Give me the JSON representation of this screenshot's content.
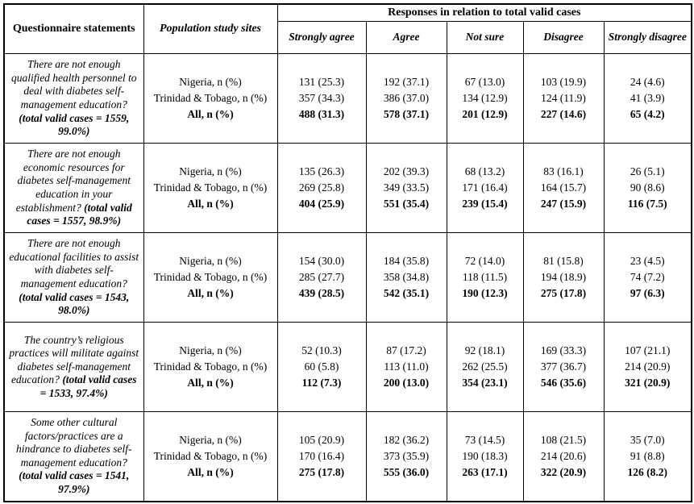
{
  "table": {
    "header": {
      "questionnaire": "Questionnaire statements",
      "population": "Population study sites",
      "responses": "Responses in relation to total valid cases",
      "response_columns": [
        "Strongly agree",
        "Agree",
        "Not sure",
        "Disagree",
        "Strongly disagree"
      ]
    },
    "site_labels": [
      "Nigeria, n (%)",
      "Trinidad & Tobago, n (%)",
      "All, n (%)"
    ],
    "rows": [
      {
        "statement": "There are not enough qualified health personnel to deal with diabetes self-management education?",
        "valid_cases": "(total valid cases = 1559, 99.0%)",
        "cells": [
          [
            "131 (25.3)",
            "357 (34.3)",
            "488 (31.3)"
          ],
          [
            "192 (37.1)",
            "386 (37.0)",
            "578 (37.1)"
          ],
          [
            "67 (13.0)",
            "134 (12.9)",
            "201 (12.9)"
          ],
          [
            "103 (19.9)",
            "124 (11.9)",
            "227 (14.6)"
          ],
          [
            "24 (4.6)",
            "41 (3.9)",
            "65 (4.2)"
          ]
        ]
      },
      {
        "statement": "There are not enough economic resources for diabetes self-management education in your establishment?",
        "valid_cases": "(total valid cases = 1557, 98.9%)",
        "cells": [
          [
            "135 (26.3)",
            "269 (25.8)",
            "404 (25.9)"
          ],
          [
            "202 (39.3)",
            "349 (33.5)",
            "551 (35.4)"
          ],
          [
            "68 (13.2)",
            "171 (16.4)",
            "239 (15.4)"
          ],
          [
            "83 (16.1)",
            "164 (15.7)",
            "247 (15.9)"
          ],
          [
            "26 (5.1)",
            "90 (8.6)",
            "116 (7.5)"
          ]
        ]
      },
      {
        "statement": "There are not enough educational facilities to assist with diabetes self-management education?",
        "valid_cases": "(total valid cases = 1543, 98.0%)",
        "cells": [
          [
            "154 (30.0)",
            "285 (27.7)",
            "439 (28.5)"
          ],
          [
            "184 (35.8)",
            "358 (34.8)",
            "542 (35.1)"
          ],
          [
            "72 (14.0)",
            "118 (11.5)",
            "190 (12.3)"
          ],
          [
            "81 (15.8)",
            "194 (18.9)",
            "275 (17.8)"
          ],
          [
            "23 (4.5)",
            "74 (7.2)",
            "97 (6.3)"
          ]
        ]
      },
      {
        "statement": "The country’s religious practices will militate against diabetes self-management education?",
        "valid_cases": "(total valid cases = 1533, 97.4%)",
        "cells": [
          [
            "52 (10.3)",
            "60 (5.8)",
            "112 (7.3)"
          ],
          [
            "87 (17.2)",
            "113 (11.0)",
            "200 (13.0)"
          ],
          [
            "92 (18.1)",
            "262 (25.5)",
            "354 (23.1)"
          ],
          [
            "169 (33.3)",
            "377 (36.7)",
            "546 (35.6)"
          ],
          [
            "107 (21.1)",
            "214 (20.9)",
            "321 (20.9)"
          ]
        ]
      },
      {
        "statement": "Some other cultural factors/practices are a hindrance to diabetes self-management education?",
        "valid_cases": "(total valid cases = 1541, 97.9%)",
        "cells": [
          [
            "105 (20.9)",
            "170 (16.4)",
            "275 (17.8)"
          ],
          [
            "182 (36.2)",
            "373 (35.9)",
            "555 (36.0)"
          ],
          [
            "73 (14.5)",
            "190 (18.3)",
            "263 (17.1)"
          ],
          [
            "108 (21.5)",
            "214 (20.6)",
            "322 (20.9)"
          ],
          [
            "35 (7.0)",
            "91 (8.8)",
            "126 (8.2)"
          ]
        ]
      }
    ]
  }
}
